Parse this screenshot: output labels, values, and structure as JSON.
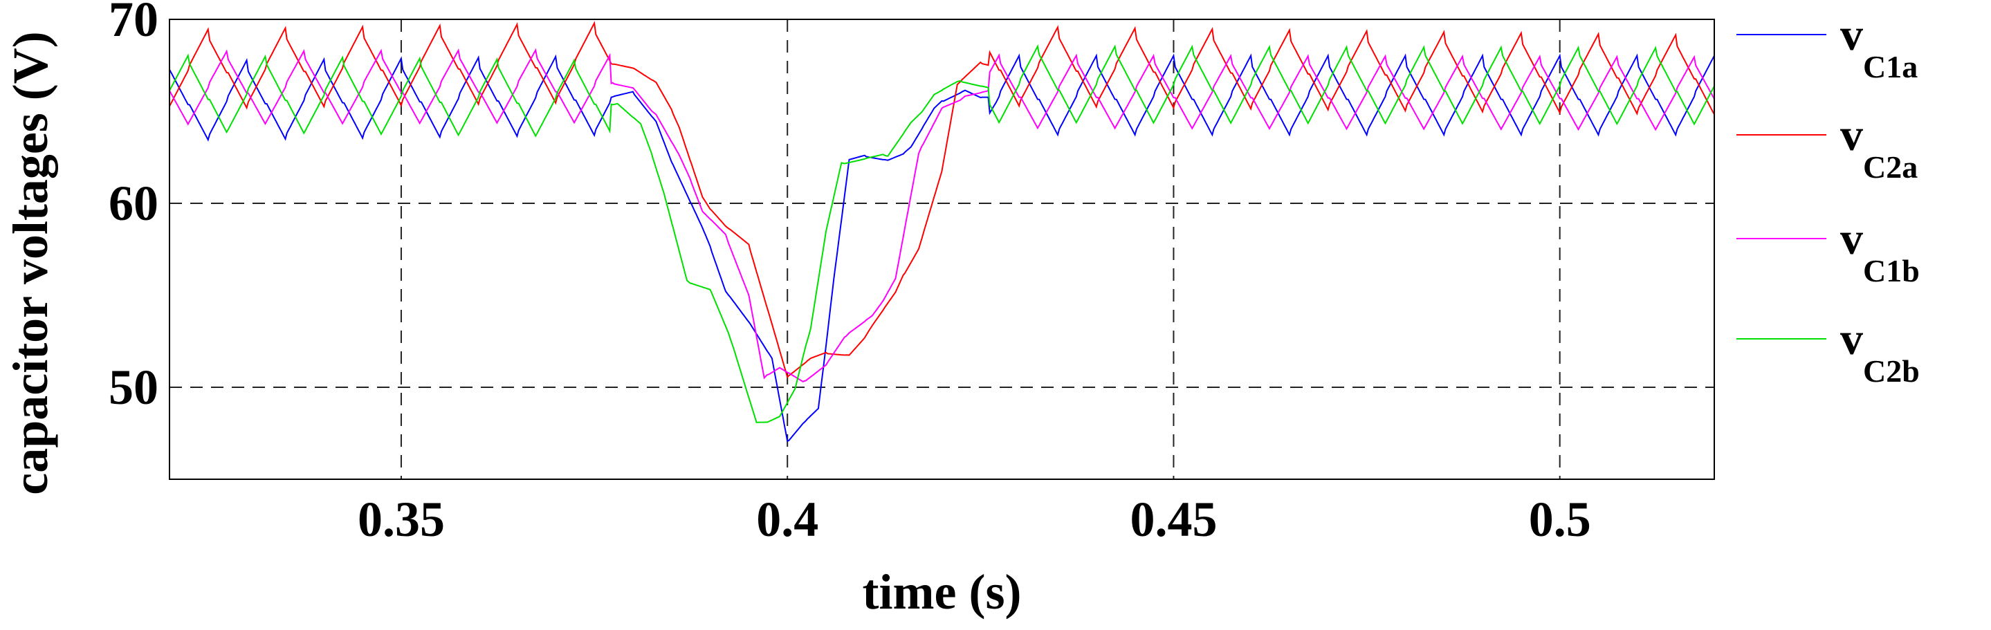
{
  "chart_data": {
    "type": "line",
    "xlabel": "time (s)",
    "ylabel": "capacitor voltages (V)",
    "xlim": [
      0.32,
      0.52
    ],
    "ylim": [
      45,
      70
    ],
    "xticks": [
      0.35,
      0.4,
      0.45,
      0.5
    ],
    "xtick_labels": [
      "0.35",
      "0.4",
      "0.45",
      "0.5"
    ],
    "yticks": [
      50,
      60,
      70
    ],
    "ytick_labels": [
      "50",
      "60",
      "70"
    ],
    "grid": true,
    "legend_position": "right",
    "series": [
      {
        "name": "vC1a",
        "legend_main": "v",
        "legend_sub": "C1a",
        "color": "#0000ff",
        "ripple_high": 67.9,
        "ripple_low": 63.9,
        "ripple_phase": 0.0,
        "points": [
          [
            0.32,
            65.5
          ],
          [
            0.38,
            65.8
          ],
          [
            0.383,
            64.5
          ],
          [
            0.386,
            61.5
          ],
          [
            0.389,
            58.5
          ],
          [
            0.392,
            55.2
          ],
          [
            0.395,
            53.8
          ],
          [
            0.398,
            51.5
          ],
          [
            0.4,
            46.8
          ],
          [
            0.402,
            48.0
          ],
          [
            0.404,
            49.0
          ],
          [
            0.406,
            56.0
          ],
          [
            0.408,
            62.3
          ],
          [
            0.413,
            62.4
          ],
          [
            0.416,
            63.2
          ],
          [
            0.419,
            65.0
          ],
          [
            0.423,
            66.2
          ],
          [
            0.427,
            65.8
          ],
          [
            0.52,
            65.8
          ]
        ]
      },
      {
        "name": "vC2a",
        "legend_main": "v",
        "legend_sub": "C2a",
        "color": "#ff0000",
        "ripple_high": 67.9,
        "ripple_low": 63.9,
        "ripple_phase": 0.5,
        "points": [
          [
            0.32,
            67.2
          ],
          [
            0.38,
            67.6
          ],
          [
            0.383,
            66.5
          ],
          [
            0.386,
            64.0
          ],
          [
            0.389,
            60.5
          ],
          [
            0.392,
            58.8
          ],
          [
            0.395,
            57.5
          ],
          [
            0.398,
            53.5
          ],
          [
            0.4,
            50.8
          ],
          [
            0.403,
            51.5
          ],
          [
            0.408,
            51.8
          ],
          [
            0.411,
            53.5
          ],
          [
            0.414,
            55.0
          ],
          [
            0.417,
            57.5
          ],
          [
            0.42,
            62.0
          ],
          [
            0.422,
            66.5
          ],
          [
            0.425,
            67.4
          ],
          [
            0.52,
            66.9
          ]
        ]
      },
      {
        "name": "vC1b",
        "legend_main": "v",
        "legend_sub": "C1b",
        "color": "#ff00ff",
        "ripple_high": 67.6,
        "ripple_low": 63.8,
        "ripple_phase": 0.25,
        "points": [
          [
            0.32,
            66.2
          ],
          [
            0.38,
            66.3
          ],
          [
            0.383,
            65.0
          ],
          [
            0.386,
            62.5
          ],
          [
            0.389,
            59.5
          ],
          [
            0.392,
            58.5
          ],
          [
            0.395,
            55.0
          ],
          [
            0.397,
            50.3
          ],
          [
            0.399,
            51.0
          ],
          [
            0.402,
            50.5
          ],
          [
            0.405,
            51.2
          ],
          [
            0.408,
            52.8
          ],
          [
            0.411,
            54.0
          ],
          [
            0.414,
            56.0
          ],
          [
            0.417,
            62.5
          ],
          [
            0.42,
            65.2
          ],
          [
            0.423,
            66.0
          ],
          [
            0.52,
            65.9
          ]
        ]
      },
      {
        "name": "vC2b",
        "legend_main": "v",
        "legend_sub": "C2b",
        "color": "#00e000",
        "ripple_high": 67.8,
        "ripple_low": 63.8,
        "ripple_phase": 0.75,
        "points": [
          [
            0.32,
            65.9
          ],
          [
            0.378,
            65.6
          ],
          [
            0.381,
            64.2
          ],
          [
            0.384,
            60.5
          ],
          [
            0.387,
            56.0
          ],
          [
            0.39,
            55.3
          ],
          [
            0.393,
            52.0
          ],
          [
            0.396,
            48.2
          ],
          [
            0.399,
            48.5
          ],
          [
            0.401,
            49.8
          ],
          [
            0.403,
            53.0
          ],
          [
            0.405,
            58.5
          ],
          [
            0.407,
            62.4
          ],
          [
            0.413,
            62.4
          ],
          [
            0.416,
            64.5
          ],
          [
            0.419,
            66.0
          ],
          [
            0.422,
            66.4
          ],
          [
            0.52,
            66.3
          ]
        ]
      }
    ]
  }
}
